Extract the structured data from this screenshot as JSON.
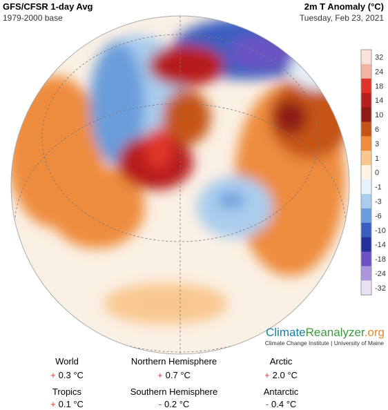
{
  "header": {
    "title": "GFS/CFSR 1-day Avg",
    "subtitle": "1979-2000 base",
    "variable": "2m T Anomaly (°C)",
    "date": "Tuesday, Feb 23, 2021"
  },
  "legend": {
    "ticks": [
      {
        "label": "32",
        "color": "#f8e2da"
      },
      {
        "label": "24",
        "color": "#f2b3a2"
      },
      {
        "label": "18",
        "color": "#e0342a"
      },
      {
        "label": "14",
        "color": "#b71e1e"
      },
      {
        "label": "10",
        "color": "#8e1a16"
      },
      {
        "label": "6",
        "color": "#c65418"
      },
      {
        "label": "3",
        "color": "#ee8c3c"
      },
      {
        "label": "1",
        "color": "#f8c78f"
      },
      {
        "label": "0",
        "color": "#fdf4e6"
      },
      {
        "label": "-1",
        "color": "#e6f1fa"
      },
      {
        "label": "-3",
        "color": "#aacdee"
      },
      {
        "label": "-6",
        "color": "#6a9edb"
      },
      {
        "label": "-10",
        "color": "#3a5ec0"
      },
      {
        "label": "-14",
        "color": "#242f99"
      },
      {
        "label": "-18",
        "color": "#6a52c2"
      },
      {
        "label": "-24",
        "color": "#ab95dd"
      },
      {
        "label": "-32",
        "color": "#e9e1f4"
      }
    ]
  },
  "logo": {
    "part1": "Climate",
    "part2": "Reanalyzer",
    "part3": ".org",
    "tagline": "Climate Change Institute | University of Maine"
  },
  "stats": [
    {
      "label": "World",
      "sign": "+",
      "value": "0.3 °C",
      "sign_color": "#e0342a"
    },
    {
      "label": "Northern Hemisphere",
      "sign": "+",
      "value": "0.7 °C",
      "sign_color": "#e0342a"
    },
    {
      "label": "Arctic",
      "sign": "+",
      "value": "2.0 °C",
      "sign_color": "#e0342a"
    },
    {
      "label": "Tropics",
      "sign": "+",
      "value": "0.1 °C",
      "sign_color": "#e0342a"
    },
    {
      "label": "Southern Hemisphere",
      "sign": "-",
      "value": "0.2 °C",
      "sign_color": "#3a5ec0"
    },
    {
      "label": "Antarctic",
      "sign": "-",
      "value": "0.4 °C",
      "sign_color": "#3a5ec0"
    }
  ]
}
